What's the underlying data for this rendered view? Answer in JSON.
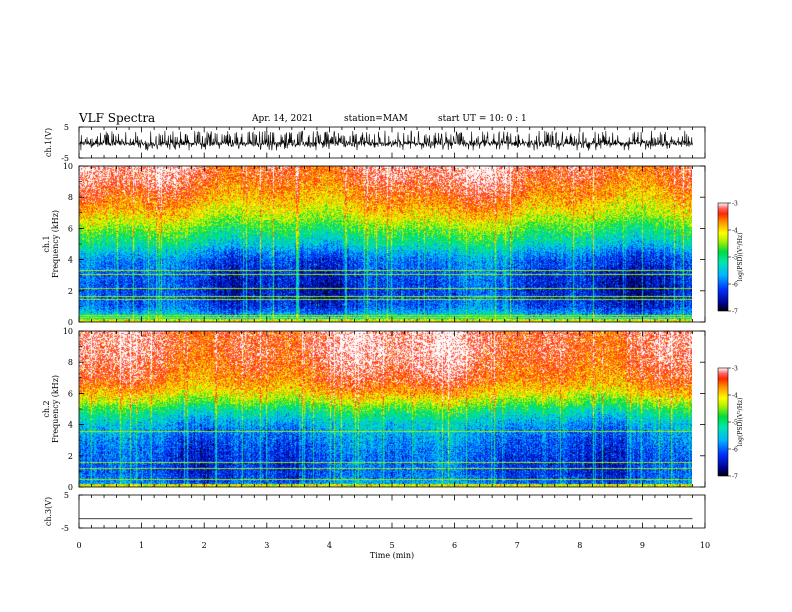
{
  "header": {
    "title": "VLF Spectra",
    "date": "Apr. 14, 2021",
    "station": "station=MAM",
    "start": "start UT =  10: 0  : 1"
  },
  "chart_data": [
    {
      "type": "line",
      "panel": "ch1-waveform",
      "ylabel": "ch.1(V)",
      "ylim": [
        -5,
        5
      ],
      "ytick_labels": [
        "5",
        "-5"
      ],
      "xlim": [
        0,
        10
      ],
      "x_extent": [
        0,
        9.8
      ],
      "description_values": {
        "mean": -0.3,
        "amplitude_range": [
          -2.6,
          3.8
        ]
      }
    },
    {
      "type": "heatmap",
      "panel": "ch1-spectrogram",
      "ylabel": "ch.1\nFrequency (kHz)",
      "ylabel_line1": "ch.1",
      "ylabel_line2": "Frequency (kHz)",
      "xlim": [
        0,
        10
      ],
      "x_extent": [
        0,
        9.8
      ],
      "ylim": [
        0,
        10
      ],
      "yticks": [
        "0",
        "2",
        "4",
        "6",
        "8",
        "10"
      ],
      "colorbar": {
        "label": "log(PSD)(V²/Hz)",
        "range": [
          -7,
          -3
        ],
        "tick_labels": [
          "-3",
          "-4",
          "-5",
          "-6",
          "-7"
        ]
      },
      "profile": {
        "freq_khz": [
          0,
          0.5,
          1,
          2,
          3,
          4,
          4.5,
          5,
          5.5,
          6,
          6.5,
          7,
          8,
          9,
          10
        ],
        "log_psd": [
          -4.8,
          -5.6,
          -6.1,
          -6.3,
          -6.2,
          -6.0,
          -5.7,
          -5.3,
          -5.0,
          -4.7,
          -4.4,
          -4.1,
          -3.7,
          -3.4,
          -3.2
        ]
      },
      "tone_lines_khz": [
        0.3,
        0.45,
        1.5,
        1.65,
        2.2,
        3.1,
        3.35
      ]
    },
    {
      "type": "heatmap",
      "panel": "ch2-spectrogram",
      "ylabel": "ch.2\nFrequency (kHz)",
      "ylabel_line1": "ch.2",
      "ylabel_line2": "Frequency (kHz)",
      "xlim": [
        0,
        10
      ],
      "x_extent": [
        0,
        9.8
      ],
      "ylim": [
        0,
        10
      ],
      "yticks": [
        "0",
        "2",
        "4",
        "6",
        "8",
        "10"
      ],
      "colorbar": {
        "label": "log(PSD)(V²/Hz)",
        "range": [
          -7,
          -3
        ],
        "tick_labels": [
          "-3",
          "-4",
          "-5",
          "-6",
          "-7"
        ]
      },
      "profile": {
        "freq_khz": [
          0,
          0.5,
          1,
          2,
          3,
          4,
          4.5,
          5,
          5.5,
          6,
          6.5,
          7,
          8,
          9,
          10
        ],
        "log_psd": [
          -5.6,
          -6.0,
          -6.1,
          -6.1,
          -5.9,
          -5.6,
          -5.3,
          -4.9,
          -4.4,
          -4.0,
          -3.7,
          -3.5,
          -3.3,
          -3.2,
          -3.2
        ]
      },
      "tone_lines_khz": [
        0.5,
        1.25,
        1.6,
        3.6
      ]
    },
    {
      "type": "line",
      "panel": "ch3-waveform",
      "ylabel": "ch.3(V)",
      "ylim": [
        -5,
        5
      ],
      "ytick_labels": [
        "5",
        "-5"
      ],
      "xlim": [
        0,
        10
      ],
      "x_extent": [
        0,
        9.8
      ],
      "values": [
        -2.2,
        -2.2
      ]
    }
  ],
  "xaxis": {
    "label": "Time (min)",
    "ticks": [
      "0",
      "1",
      "2",
      "3",
      "4",
      "5",
      "6",
      "7",
      "8",
      "9",
      "10"
    ]
  }
}
